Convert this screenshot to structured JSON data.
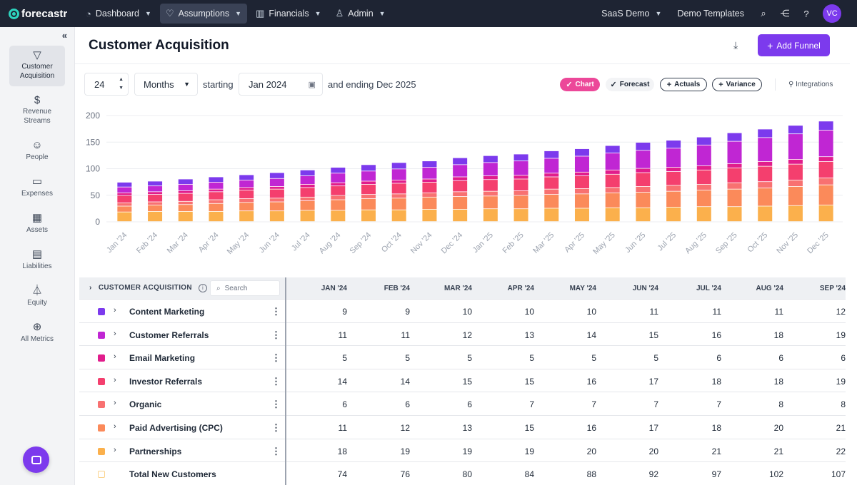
{
  "nav": {
    "logo": "forecastr",
    "items": [
      {
        "label": "Dashboard",
        "icon": "gauge-icon"
      },
      {
        "label": "Assumptions",
        "icon": "bulb-icon"
      },
      {
        "label": "Financials",
        "icon": "book-icon"
      },
      {
        "label": "Admin",
        "icon": "person-gear-icon"
      }
    ],
    "workspace": "SaaS Demo",
    "templates": "Demo Templates",
    "avatar": "VC"
  },
  "sidebar": {
    "items": [
      {
        "label": "Customer Acquisition",
        "icon": "funnel-icon"
      },
      {
        "label": "Revenue Streams",
        "icon": "dollar-icon"
      },
      {
        "label": "People",
        "icon": "people-icon"
      },
      {
        "label": "Expenses",
        "icon": "card-icon"
      },
      {
        "label": "Assets",
        "icon": "calculator-icon"
      },
      {
        "label": "Liabilities",
        "icon": "document-icon"
      },
      {
        "label": "Equity",
        "icon": "landmark-icon"
      },
      {
        "label": "All Metrics",
        "icon": "globe-icon"
      }
    ]
  },
  "header": {
    "title": "Customer Acquisition",
    "add_button": "Add Funnel"
  },
  "controls": {
    "period_count": "24",
    "period_unit": "Months",
    "starting_label": "starting",
    "start_date": "Jan 2024",
    "ending_label": "and ending Dec 2025",
    "pills": {
      "chart": "Chart",
      "forecast": "Forecast",
      "actuals": "Actuals",
      "variance": "Variance"
    },
    "integrations": "Integrations"
  },
  "colors": {
    "content_marketing": "#7c3aed",
    "customer_referrals": "#c026d3",
    "email_marketing": "#e11d8c",
    "investor_referrals": "#f43f6e",
    "organic": "#f87171",
    "paid_advertising": "#fb8a5a",
    "partnerships": "#fbb04c"
  },
  "chart_data": {
    "type": "bar",
    "stacked": true,
    "categories": [
      "Jan '24",
      "Feb '24",
      "Mar '24",
      "Apr '24",
      "May '24",
      "Jun '24",
      "Jul '24",
      "Aug '24",
      "Sep '24",
      "Oct '24",
      "Nov '24",
      "Dec '24",
      "Jan '25",
      "Feb '25",
      "Mar '25",
      "Apr '25",
      "May '25",
      "Jun '25",
      "Jul '25",
      "Aug '25",
      "Sep '25",
      "Oct '25",
      "Nov '25",
      "Dec '25"
    ],
    "series": [
      {
        "name": "Partnerships",
        "color_key": "partnerships",
        "values": [
          18,
          19,
          19,
          19,
          20,
          20,
          21,
          21,
          22,
          22,
          23,
          23,
          24,
          24,
          25,
          25,
          26,
          26,
          27,
          28,
          28,
          29,
          30,
          31
        ]
      },
      {
        "name": "Paid Advertising (CPC)",
        "color_key": "paid_advertising",
        "values": [
          11,
          12,
          13,
          15,
          16,
          17,
          18,
          20,
          21,
          22,
          23,
          24,
          24,
          25,
          26,
          27,
          28,
          29,
          30,
          31,
          33,
          34,
          36,
          38
        ]
      },
      {
        "name": "Organic",
        "color_key": "organic",
        "values": [
          6,
          6,
          6,
          7,
          7,
          7,
          7,
          8,
          8,
          8,
          8,
          9,
          9,
          9,
          10,
          10,
          10,
          11,
          11,
          11,
          12,
          12,
          12,
          13
        ]
      },
      {
        "name": "Investor Referrals",
        "color_key": "investor_referrals",
        "values": [
          14,
          14,
          15,
          15,
          16,
          17,
          18,
          18,
          19,
          20,
          20,
          21,
          22,
          22,
          23,
          24,
          25,
          26,
          26,
          27,
          28,
          29,
          30,
          31
        ]
      },
      {
        "name": "Email Marketing",
        "color_key": "email_marketing",
        "values": [
          5,
          5,
          5,
          5,
          5,
          5,
          6,
          6,
          6,
          6,
          6,
          7,
          7,
          7,
          7,
          7,
          8,
          8,
          8,
          8,
          8,
          9,
          9,
          9
        ]
      },
      {
        "name": "Customer Referrals",
        "color_key": "customer_referrals",
        "values": [
          11,
          11,
          12,
          13,
          14,
          15,
          16,
          18,
          19,
          21,
          22,
          23,
          25,
          27,
          28,
          30,
          32,
          34,
          36,
          39,
          42,
          45,
          48,
          50
        ]
      },
      {
        "name": "Content Marketing",
        "color_key": "content_marketing",
        "values": [
          9,
          9,
          10,
          10,
          10,
          11,
          11,
          11,
          12,
          12,
          12,
          13,
          13,
          13,
          14,
          14,
          14,
          15,
          15,
          15,
          16,
          16,
          16,
          17
        ]
      }
    ],
    "yticks": [
      0,
      50,
      100,
      150,
      200
    ],
    "ylim": [
      0,
      200
    ],
    "grid": true
  },
  "table": {
    "header_label": "CUSTOMER ACQUISITION",
    "search_placeholder": "Search",
    "columns": [
      "JAN '24",
      "FEB '24",
      "MAR '24",
      "APR '24",
      "MAY '24",
      "JUN '24",
      "JUL '24",
      "AUG '24",
      "SEP '24"
    ],
    "rows": [
      {
        "name": "Content Marketing",
        "color_key": "content_marketing",
        "values": [
          "9",
          "9",
          "10",
          "10",
          "10",
          "11",
          "11",
          "11",
          "12"
        ]
      },
      {
        "name": "Customer Referrals",
        "color_key": "customer_referrals",
        "values": [
          "11",
          "11",
          "12",
          "13",
          "14",
          "15",
          "16",
          "18",
          "19"
        ]
      },
      {
        "name": "Email Marketing",
        "color_key": "email_marketing",
        "values": [
          "5",
          "5",
          "5",
          "5",
          "5",
          "5",
          "6",
          "6",
          "6"
        ]
      },
      {
        "name": "Investor Referrals",
        "color_key": "investor_referrals",
        "values": [
          "14",
          "14",
          "15",
          "15",
          "16",
          "17",
          "18",
          "18",
          "19"
        ]
      },
      {
        "name": "Organic",
        "color_key": "organic",
        "values": [
          "6",
          "6",
          "6",
          "7",
          "7",
          "7",
          "7",
          "8",
          "8"
        ]
      },
      {
        "name": "Paid Advertising (CPC)",
        "color_key": "paid_advertising",
        "values": [
          "11",
          "12",
          "13",
          "15",
          "16",
          "17",
          "18",
          "20",
          "21"
        ]
      },
      {
        "name": "Partnerships",
        "color_key": "partnerships",
        "values": [
          "18",
          "19",
          "19",
          "19",
          "20",
          "20",
          "21",
          "21",
          "22"
        ]
      }
    ],
    "total": {
      "name": "Total New Customers",
      "values": [
        "74",
        "76",
        "80",
        "84",
        "88",
        "92",
        "97",
        "102",
        "107"
      ]
    }
  }
}
